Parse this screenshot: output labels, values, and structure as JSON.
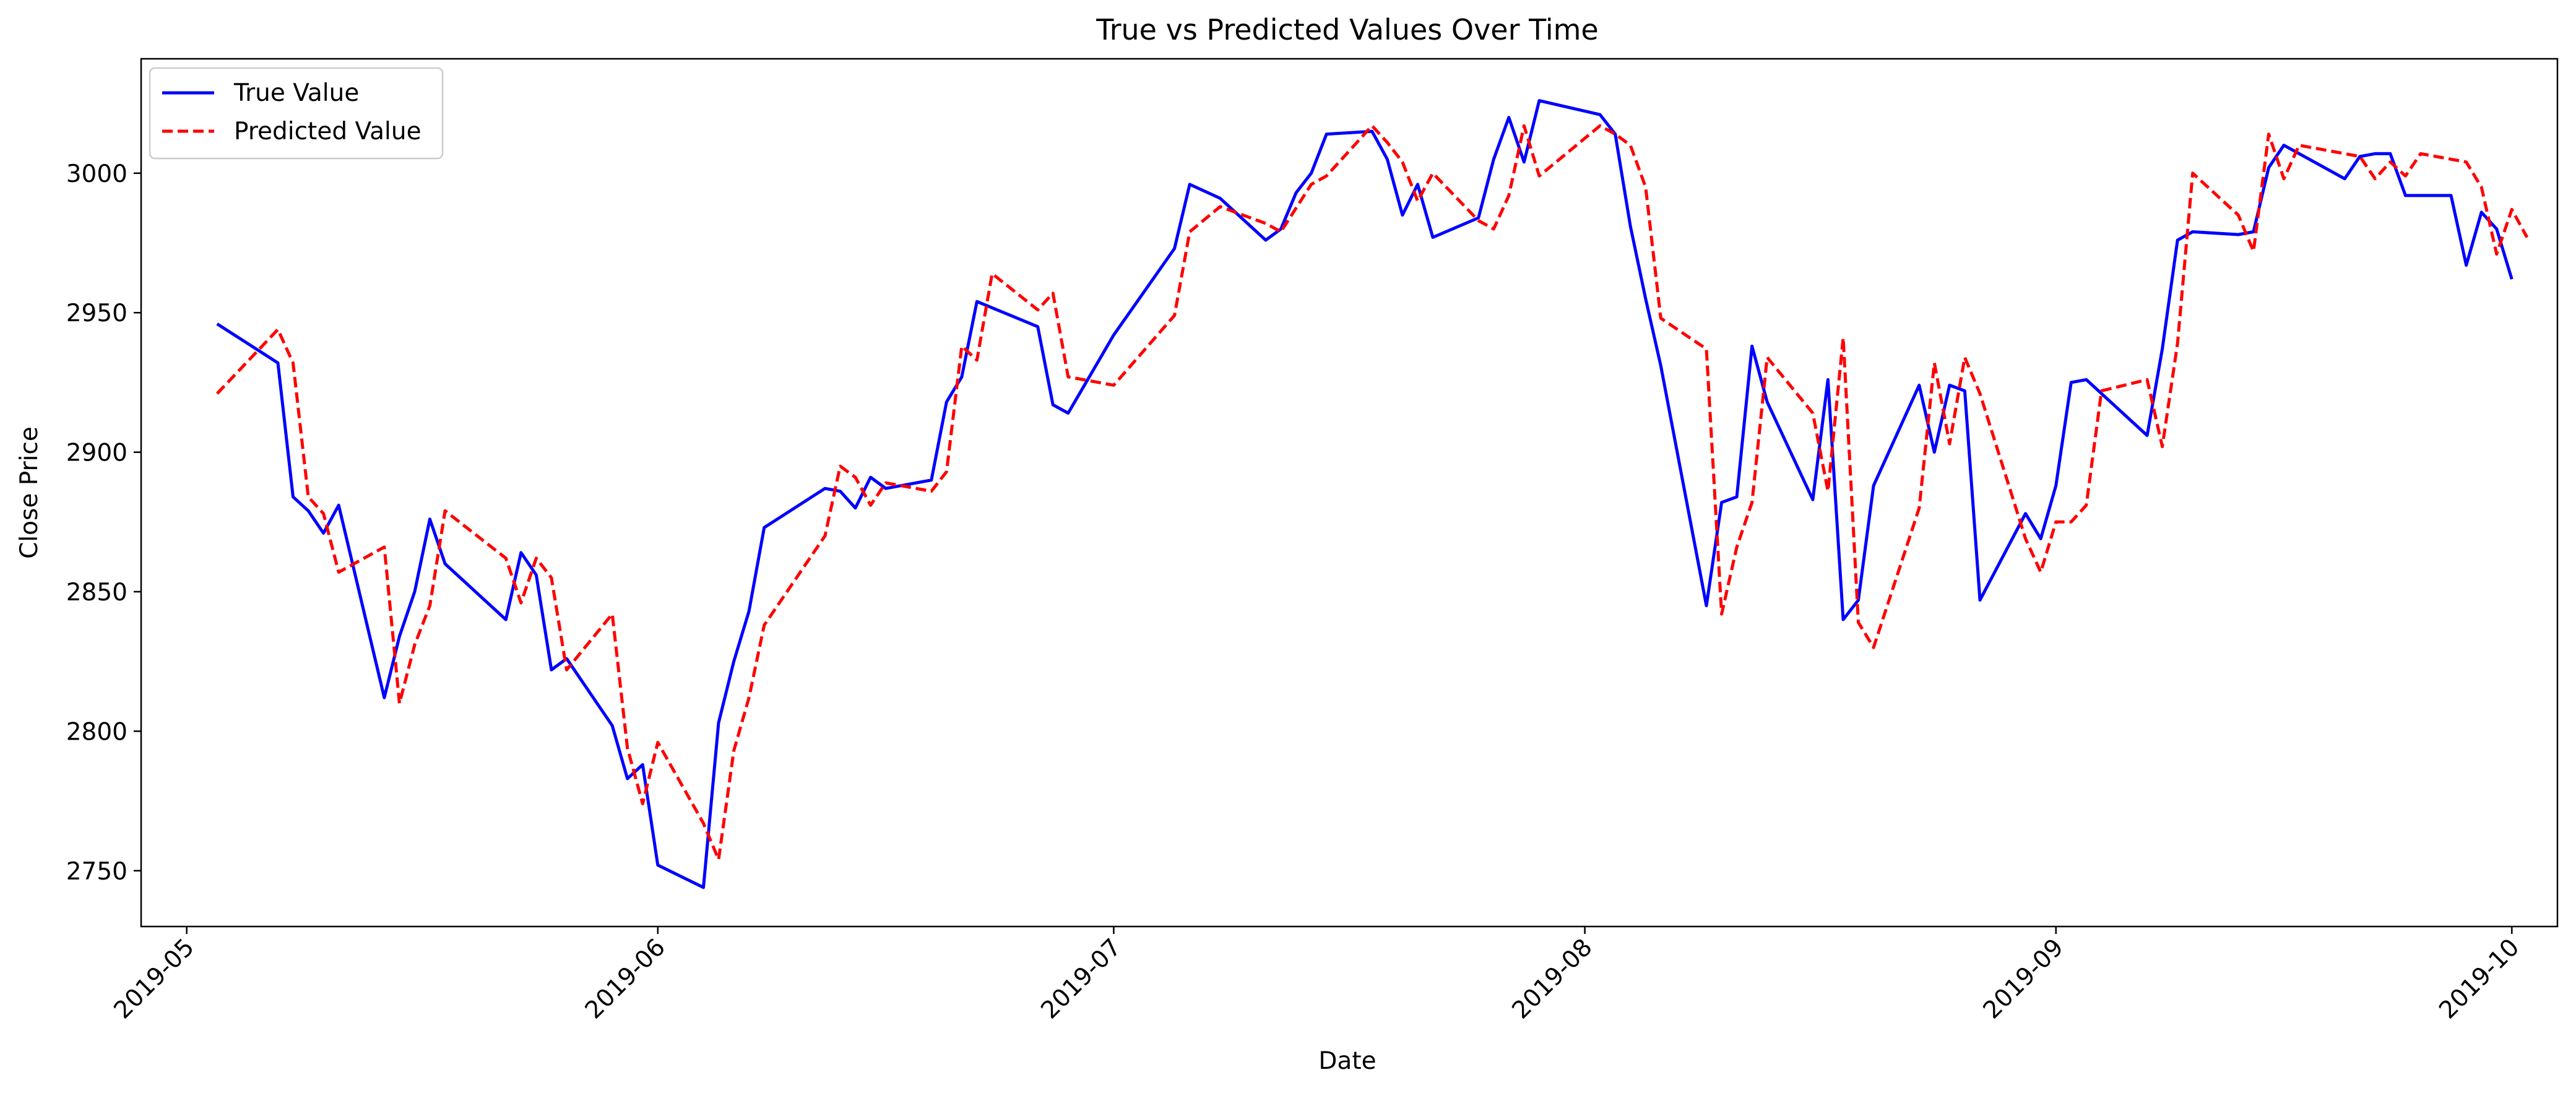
{
  "colors": {
    "true_series": "#0000ff",
    "predicted_series": "#ff0000",
    "axis": "#000000",
    "background": "#ffffff"
  },
  "chart_data": {
    "type": "line",
    "title": "True vs Predicted Values Over Time",
    "xlabel": "Date",
    "ylabel": "Close Price",
    "xlim": [
      "2019-04-28",
      "2019-10-04"
    ],
    "ylim": [
      2730,
      3041
    ],
    "x_ticks": [
      "2019-05",
      "2019-06",
      "2019-07",
      "2019-08",
      "2019-09",
      "2019-10"
    ],
    "y_ticks": [
      2750,
      2800,
      2850,
      2900,
      2950,
      3000
    ],
    "grid": false,
    "legend_position": "top-left",
    "series": [
      {
        "name": "True Value",
        "line_style": "solid",
        "points": [
          [
            "2019-05-03",
            2946
          ],
          [
            "2019-05-07",
            2932
          ],
          [
            "2019-05-08",
            2884
          ],
          [
            "2019-05-09",
            2879
          ],
          [
            "2019-05-10",
            2871
          ],
          [
            "2019-05-11",
            2881
          ],
          [
            "2019-05-14",
            2812
          ],
          [
            "2019-05-15",
            2834
          ],
          [
            "2019-05-16",
            2850
          ],
          [
            "2019-05-17",
            2876
          ],
          [
            "2019-05-18",
            2860
          ],
          [
            "2019-05-22",
            2840
          ],
          [
            "2019-05-23",
            2864
          ],
          [
            "2019-05-24",
            2856
          ],
          [
            "2019-05-25",
            2822
          ],
          [
            "2019-05-26",
            2826
          ],
          [
            "2019-05-29",
            2802
          ],
          [
            "2019-05-30",
            2783
          ],
          [
            "2019-05-31",
            2788
          ],
          [
            "2019-06-01",
            2752
          ],
          [
            "2019-06-04",
            2744
          ],
          [
            "2019-06-05",
            2803
          ],
          [
            "2019-06-06",
            2825
          ],
          [
            "2019-06-07",
            2843
          ],
          [
            "2019-06-08",
            2873
          ],
          [
            "2019-06-12",
            2887
          ],
          [
            "2019-06-13",
            2886
          ],
          [
            "2019-06-14",
            2880
          ],
          [
            "2019-06-15",
            2891
          ],
          [
            "2019-06-16",
            2887
          ],
          [
            "2019-06-19",
            2890
          ],
          [
            "2019-06-20",
            2918
          ],
          [
            "2019-06-21",
            2927
          ],
          [
            "2019-06-22",
            2954
          ],
          [
            "2019-06-26",
            2945
          ],
          [
            "2019-06-27",
            2917
          ],
          [
            "2019-06-28",
            2914
          ],
          [
            "2019-07-01",
            2942
          ],
          [
            "2019-07-05",
            2973
          ],
          [
            "2019-07-06",
            2996
          ],
          [
            "2019-07-08",
            2991
          ],
          [
            "2019-07-11",
            2976
          ],
          [
            "2019-07-12",
            2980
          ],
          [
            "2019-07-13",
            2993
          ],
          [
            "2019-07-14",
            3000
          ],
          [
            "2019-07-15",
            3014
          ],
          [
            "2019-07-18",
            3015
          ],
          [
            "2019-07-19",
            3005
          ],
          [
            "2019-07-20",
            2985
          ],
          [
            "2019-07-21",
            2996
          ],
          [
            "2019-07-22",
            2977
          ],
          [
            "2019-07-25",
            2984
          ],
          [
            "2019-07-26",
            3005
          ],
          [
            "2019-07-27",
            3020
          ],
          [
            "2019-07-28",
            3004
          ],
          [
            "2019-07-29",
            3026
          ],
          [
            "2019-08-02",
            3021
          ],
          [
            "2019-08-03",
            3014
          ],
          [
            "2019-08-04",
            2981
          ],
          [
            "2019-08-05",
            2955
          ],
          [
            "2019-08-06",
            2931
          ],
          [
            "2019-08-09",
            2845
          ],
          [
            "2019-08-10",
            2882
          ],
          [
            "2019-08-11",
            2884
          ],
          [
            "2019-08-12",
            2938
          ],
          [
            "2019-08-13",
            2918
          ],
          [
            "2019-08-16",
            2883
          ],
          [
            "2019-08-17",
            2926
          ],
          [
            "2019-08-18",
            2840
          ],
          [
            "2019-08-19",
            2847
          ],
          [
            "2019-08-20",
            2888
          ],
          [
            "2019-08-23",
            2924
          ],
          [
            "2019-08-24",
            2900
          ],
          [
            "2019-08-25",
            2924
          ],
          [
            "2019-08-26",
            2922
          ],
          [
            "2019-08-27",
            2847
          ],
          [
            "2019-08-30",
            2878
          ],
          [
            "2019-08-31",
            2869
          ],
          [
            "2019-09-01",
            2888
          ],
          [
            "2019-09-02",
            2925
          ],
          [
            "2019-09-03",
            2926
          ],
          [
            "2019-09-07",
            2906
          ],
          [
            "2019-09-08",
            2937
          ],
          [
            "2019-09-09",
            2976
          ],
          [
            "2019-09-10",
            2979
          ],
          [
            "2019-09-13",
            2978
          ],
          [
            "2019-09-14",
            2979
          ],
          [
            "2019-09-15",
            3002
          ],
          [
            "2019-09-16",
            3010
          ],
          [
            "2019-09-20",
            2998
          ],
          [
            "2019-09-21",
            3006
          ],
          [
            "2019-09-22",
            3007
          ],
          [
            "2019-09-23",
            3007
          ],
          [
            "2019-09-24",
            2992
          ],
          [
            "2019-09-27",
            2992
          ],
          [
            "2019-09-28",
            2967
          ],
          [
            "2019-09-29",
            2986
          ],
          [
            "2019-09-30",
            2980
          ],
          [
            "2019-10-01",
            2962
          ]
        ]
      },
      {
        "name": "Predicted Value",
        "line_style": "dashed",
        "points": [
          [
            "2019-05-03",
            2921
          ],
          [
            "2019-05-07",
            2944
          ],
          [
            "2019-05-08",
            2932
          ],
          [
            "2019-05-09",
            2884
          ],
          [
            "2019-05-10",
            2878
          ],
          [
            "2019-05-11",
            2857
          ],
          [
            "2019-05-14",
            2866
          ],
          [
            "2019-05-15",
            2810
          ],
          [
            "2019-05-16",
            2831
          ],
          [
            "2019-05-17",
            2845
          ],
          [
            "2019-05-18",
            2879
          ],
          [
            "2019-05-22",
            2862
          ],
          [
            "2019-05-23",
            2846
          ],
          [
            "2019-05-24",
            2862
          ],
          [
            "2019-05-25",
            2855
          ],
          [
            "2019-05-26",
            2822
          ],
          [
            "2019-05-29",
            2842
          ],
          [
            "2019-05-30",
            2794
          ],
          [
            "2019-05-31",
            2774
          ],
          [
            "2019-06-01",
            2796
          ],
          [
            "2019-06-04",
            2767
          ],
          [
            "2019-06-05",
            2754
          ],
          [
            "2019-06-06",
            2793
          ],
          [
            "2019-06-07",
            2812
          ],
          [
            "2019-06-08",
            2838
          ],
          [
            "2019-06-12",
            2870
          ],
          [
            "2019-06-13",
            2895
          ],
          [
            "2019-06-14",
            2891
          ],
          [
            "2019-06-15",
            2881
          ],
          [
            "2019-06-16",
            2889
          ],
          [
            "2019-06-19",
            2886
          ],
          [
            "2019-06-20",
            2893
          ],
          [
            "2019-06-21",
            2938
          ],
          [
            "2019-06-22",
            2933
          ],
          [
            "2019-06-23",
            2964
          ],
          [
            "2019-06-26",
            2951
          ],
          [
            "2019-06-27",
            2957
          ],
          [
            "2019-06-28",
            2927
          ],
          [
            "2019-07-01",
            2924
          ],
          [
            "2019-07-05",
            2949
          ],
          [
            "2019-07-06",
            2979
          ],
          [
            "2019-07-08",
            2988
          ],
          [
            "2019-07-11",
            2982
          ],
          [
            "2019-07-12",
            2979
          ],
          [
            "2019-07-14",
            2996
          ],
          [
            "2019-07-15",
            2999
          ],
          [
            "2019-07-18",
            3017
          ],
          [
            "2019-07-19",
            3011
          ],
          [
            "2019-07-20",
            3004
          ],
          [
            "2019-07-21",
            2990
          ],
          [
            "2019-07-22",
            3000
          ],
          [
            "2019-07-25",
            2983
          ],
          [
            "2019-07-26",
            2980
          ],
          [
            "2019-07-27",
            2992
          ],
          [
            "2019-07-28",
            3017
          ],
          [
            "2019-07-29",
            2999
          ],
          [
            "2019-08-02",
            3017
          ],
          [
            "2019-08-03",
            3014
          ],
          [
            "2019-08-04",
            3010
          ],
          [
            "2019-08-05",
            2995
          ],
          [
            "2019-08-06",
            2948
          ],
          [
            "2019-08-09",
            2937
          ],
          [
            "2019-08-10",
            2842
          ],
          [
            "2019-08-11",
            2866
          ],
          [
            "2019-08-12",
            2882
          ],
          [
            "2019-08-13",
            2934
          ],
          [
            "2019-08-16",
            2914
          ],
          [
            "2019-08-17",
            2886
          ],
          [
            "2019-08-18",
            2941
          ],
          [
            "2019-08-19",
            2839
          ],
          [
            "2019-08-20",
            2830
          ],
          [
            "2019-08-23",
            2880
          ],
          [
            "2019-08-24",
            2932
          ],
          [
            "2019-08-25",
            2903
          ],
          [
            "2019-08-26",
            2934
          ],
          [
            "2019-08-27",
            2921
          ],
          [
            "2019-08-30",
            2869
          ],
          [
            "2019-08-31",
            2857
          ],
          [
            "2019-09-01",
            2875
          ],
          [
            "2019-09-02",
            2875
          ],
          [
            "2019-09-03",
            2881
          ],
          [
            "2019-09-04",
            2922
          ],
          [
            "2019-09-07",
            2926
          ],
          [
            "2019-09-08",
            2902
          ],
          [
            "2019-09-09",
            2939
          ],
          [
            "2019-09-10",
            3000
          ],
          [
            "2019-09-13",
            2985
          ],
          [
            "2019-09-14",
            2972
          ],
          [
            "2019-09-15",
            3014
          ],
          [
            "2019-09-16",
            2998
          ],
          [
            "2019-09-17",
            3010
          ],
          [
            "2019-09-21",
            3006
          ],
          [
            "2019-09-22",
            2998
          ],
          [
            "2019-09-23",
            3004
          ],
          [
            "2019-09-24",
            2999
          ],
          [
            "2019-09-25",
            3007
          ],
          [
            "2019-09-28",
            3004
          ],
          [
            "2019-09-29",
            2995
          ],
          [
            "2019-09-30",
            2971
          ],
          [
            "2019-10-01",
            2987
          ],
          [
            "2019-10-02",
            2977
          ]
        ]
      }
    ]
  }
}
